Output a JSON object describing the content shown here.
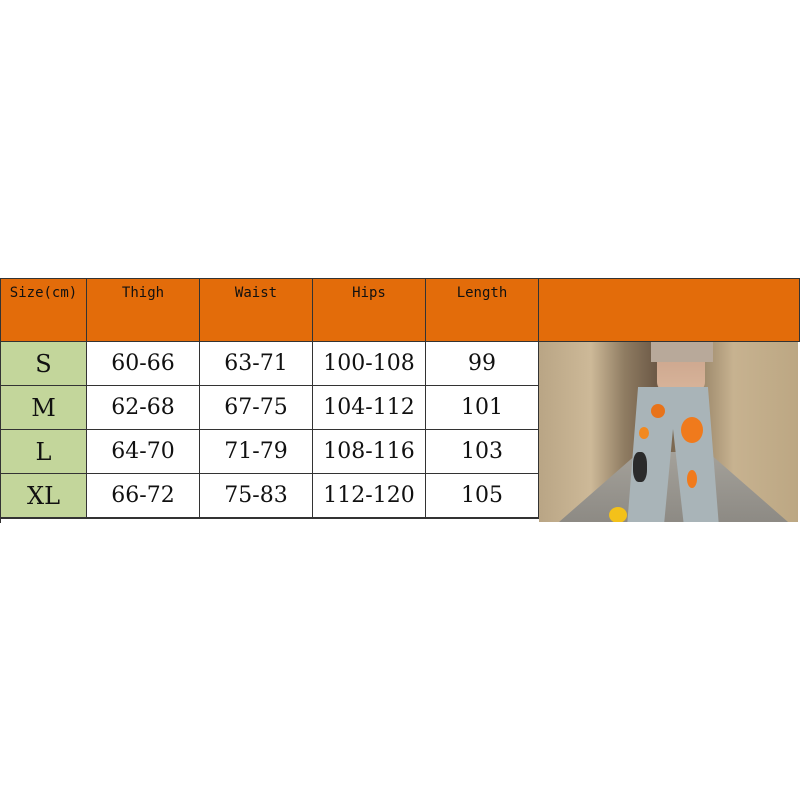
{
  "table": {
    "headers": [
      "Size(cm)",
      "Thigh",
      "Waist",
      "Hips",
      "Length",
      ""
    ],
    "rows": [
      {
        "size": "S",
        "thigh": "60-66",
        "waist": "63-71",
        "hips": "100-108",
        "length": "99"
      },
      {
        "size": "M",
        "thigh": "62-68",
        "waist": "67-75",
        "hips": "104-112",
        "length": "101"
      },
      {
        "size": "L",
        "thigh": "64-70",
        "waist": "71-79",
        "hips": "108-116",
        "length": "103"
      },
      {
        "size": "XL",
        "thigh": "66-72",
        "waist": "75-83",
        "hips": "112-120",
        "length": "105"
      }
    ]
  },
  "colors": {
    "header": "#e36c0a",
    "size_column": "#c3d69b",
    "body": "#ffffff"
  }
}
